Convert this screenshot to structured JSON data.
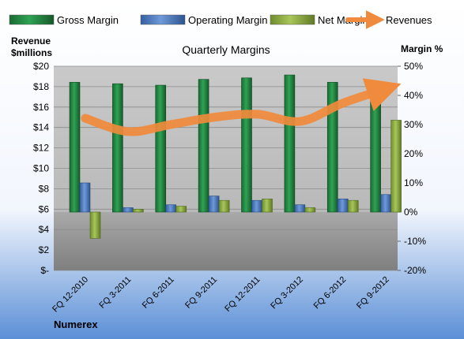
{
  "chart_data": {
    "type": "bar",
    "title": "Quarterly Margins",
    "company": "Numerex",
    "left_axis_label_line1": "Revenue",
    "left_axis_label_line2": "$millions",
    "right_axis_label": "Margin %",
    "categories": [
      "FQ 12-2010",
      "FQ 3-2011",
      "FQ 6-2011",
      "FQ 9-2011",
      "FQ 12-2011",
      "FQ 3-2012",
      "FQ 6-2012",
      "FQ 9-2012"
    ],
    "left_ticks": [
      "$-",
      "$2",
      "$4",
      "$6",
      "$8",
      "$10",
      "$12",
      "$14",
      "$16",
      "$18",
      "$20"
    ],
    "right_ticks": [
      "-20%",
      "-10%",
      "0%",
      "10%",
      "20%",
      "30%",
      "40%",
      "50%"
    ],
    "left_ylim": [
      0,
      20
    ],
    "right_ylim": [
      -20,
      50
    ],
    "legend_position": "top",
    "series": [
      {
        "name": "Gross Margin",
        "axis": "right",
        "values": [
          44.5,
          44,
          43.5,
          45.5,
          46,
          47,
          44.5,
          42.5
        ],
        "color": "#1f7a3a"
      },
      {
        "name": "Operating Margin",
        "axis": "right",
        "values": [
          10,
          1.5,
          2.5,
          5.5,
          4,
          2.5,
          4.5,
          6
        ],
        "color": "#3f6fb5"
      },
      {
        "name": "Net Margin",
        "axis": "right",
        "values": [
          -9,
          1,
          2,
          4,
          4.5,
          1.5,
          4,
          31.5
        ],
        "color": "#8aab3e"
      },
      {
        "name": "Revenues",
        "axis": "left",
        "type": "line",
        "values": [
          14.9,
          13.6,
          14.3,
          15.0,
          15.3,
          14.6,
          16.4,
          17.8
        ],
        "color": "#f08a3c"
      }
    ]
  }
}
